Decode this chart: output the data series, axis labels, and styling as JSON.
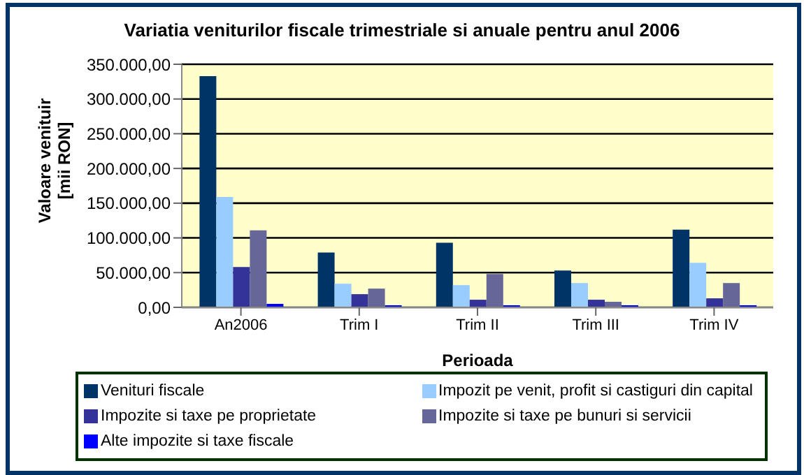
{
  "chart_data": {
    "type": "bar",
    "title": "Variatia veniturilor fiscale trimestriale si anuale pentru anul 2006",
    "xlabel": "Perioada",
    "ylabel": "Valoare venituir [mii RON]",
    "categories": [
      "An2006",
      "Trim I",
      "Trim II",
      "Trim III",
      "Trim IV"
    ],
    "series": [
      {
        "name": "Venituri fiscale",
        "color": "#003366",
        "values": [
          333000,
          79000,
          93000,
          53000,
          112000
        ]
      },
      {
        "name": "Impozit pe venit, profit si castiguri din capital",
        "color": "#99ccff",
        "values": [
          159000,
          34000,
          32000,
          35000,
          64000
        ]
      },
      {
        "name": "Impozite si taxe pe proprietate",
        "color": "#333399",
        "values": [
          58000,
          19000,
          11000,
          11000,
          13000
        ]
      },
      {
        "name": "Impozite si taxe pe bunuri si servicii",
        "color": "#666699",
        "values": [
          111000,
          27000,
          48000,
          8000,
          35000
        ]
      },
      {
        "name": "Alte impozite si taxe fiscale",
        "color": "#0000ff",
        "values": [
          5000,
          3000,
          3000,
          3000,
          3000
        ]
      }
    ],
    "ylim": [
      0,
      350000
    ],
    "yticks": [
      {
        "value": 0,
        "label": "0,00"
      },
      {
        "value": 50000,
        "label": "50.000,00"
      },
      {
        "value": 100000,
        "label": "100.000,00"
      },
      {
        "value": 150000,
        "label": "150.000,00"
      },
      {
        "value": 200000,
        "label": "200.000,00"
      },
      {
        "value": 250000,
        "label": "250.000,00"
      },
      {
        "value": 300000,
        "label": "300.000,00"
      },
      {
        "value": 350000,
        "label": "350.000,00"
      }
    ],
    "grid": "y",
    "legend": "bottom"
  }
}
